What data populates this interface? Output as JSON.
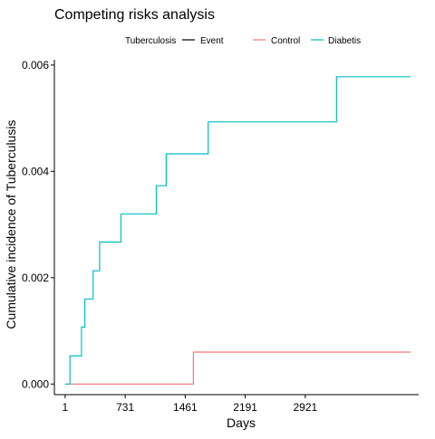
{
  "chart_data": {
    "type": "line",
    "title": "Competing risks analysis",
    "xlabel": "Days",
    "ylabel": "Cumulative incidence of Tuberculusis",
    "xlim": [
      -130,
      4300
    ],
    "ylim": [
      -0.0002,
      0.0061
    ],
    "x_ticks": [
      1,
      731,
      1461,
      2191,
      2921
    ],
    "x_tick_labels": [
      "1",
      "731",
      "1461",
      "2191",
      "2921"
    ],
    "y_ticks": [
      0,
      0.002,
      0.004,
      0.006
    ],
    "y_tick_labels": [
      "0.000",
      "0.002",
      "0.004",
      "0.006"
    ],
    "grid": false,
    "legend": {
      "placement": "top",
      "groups": [
        {
          "title": "Tuberculosis",
          "entries": [
            {
              "label": "Event",
              "color": "#000000"
            }
          ]
        },
        {
          "title": "",
          "entries": [
            {
              "label": "Control",
              "color": "#F8766D"
            },
            {
              "label": "Diabetis",
              "color": "#00BFC4"
            }
          ]
        }
      ]
    },
    "series": [
      {
        "name": "Control",
        "color": "#F8766D",
        "step": true,
        "points": [
          [
            1,
            0
          ],
          [
            1560,
            0
          ],
          [
            1560,
            0.0006
          ],
          [
            4200,
            0.0006
          ]
        ]
      },
      {
        "name": "Diabetis",
        "color": "#00BFC4",
        "step": true,
        "points": [
          [
            1,
            0
          ],
          [
            60,
            0
          ],
          [
            60,
            0.00053
          ],
          [
            200,
            0.00053
          ],
          [
            200,
            0.00107
          ],
          [
            240,
            0.00107
          ],
          [
            240,
            0.0016
          ],
          [
            340,
            0.0016
          ],
          [
            340,
            0.00213
          ],
          [
            420,
            0.00213
          ],
          [
            420,
            0.00267
          ],
          [
            680,
            0.00267
          ],
          [
            680,
            0.0032
          ],
          [
            1110,
            0.0032
          ],
          [
            1110,
            0.00373
          ],
          [
            1230,
            0.00373
          ],
          [
            1230,
            0.00433
          ],
          [
            1740,
            0.00433
          ],
          [
            1740,
            0.00493
          ],
          [
            3300,
            0.00493
          ],
          [
            3300,
            0.00578
          ],
          [
            4200,
            0.00578
          ]
        ]
      }
    ]
  }
}
